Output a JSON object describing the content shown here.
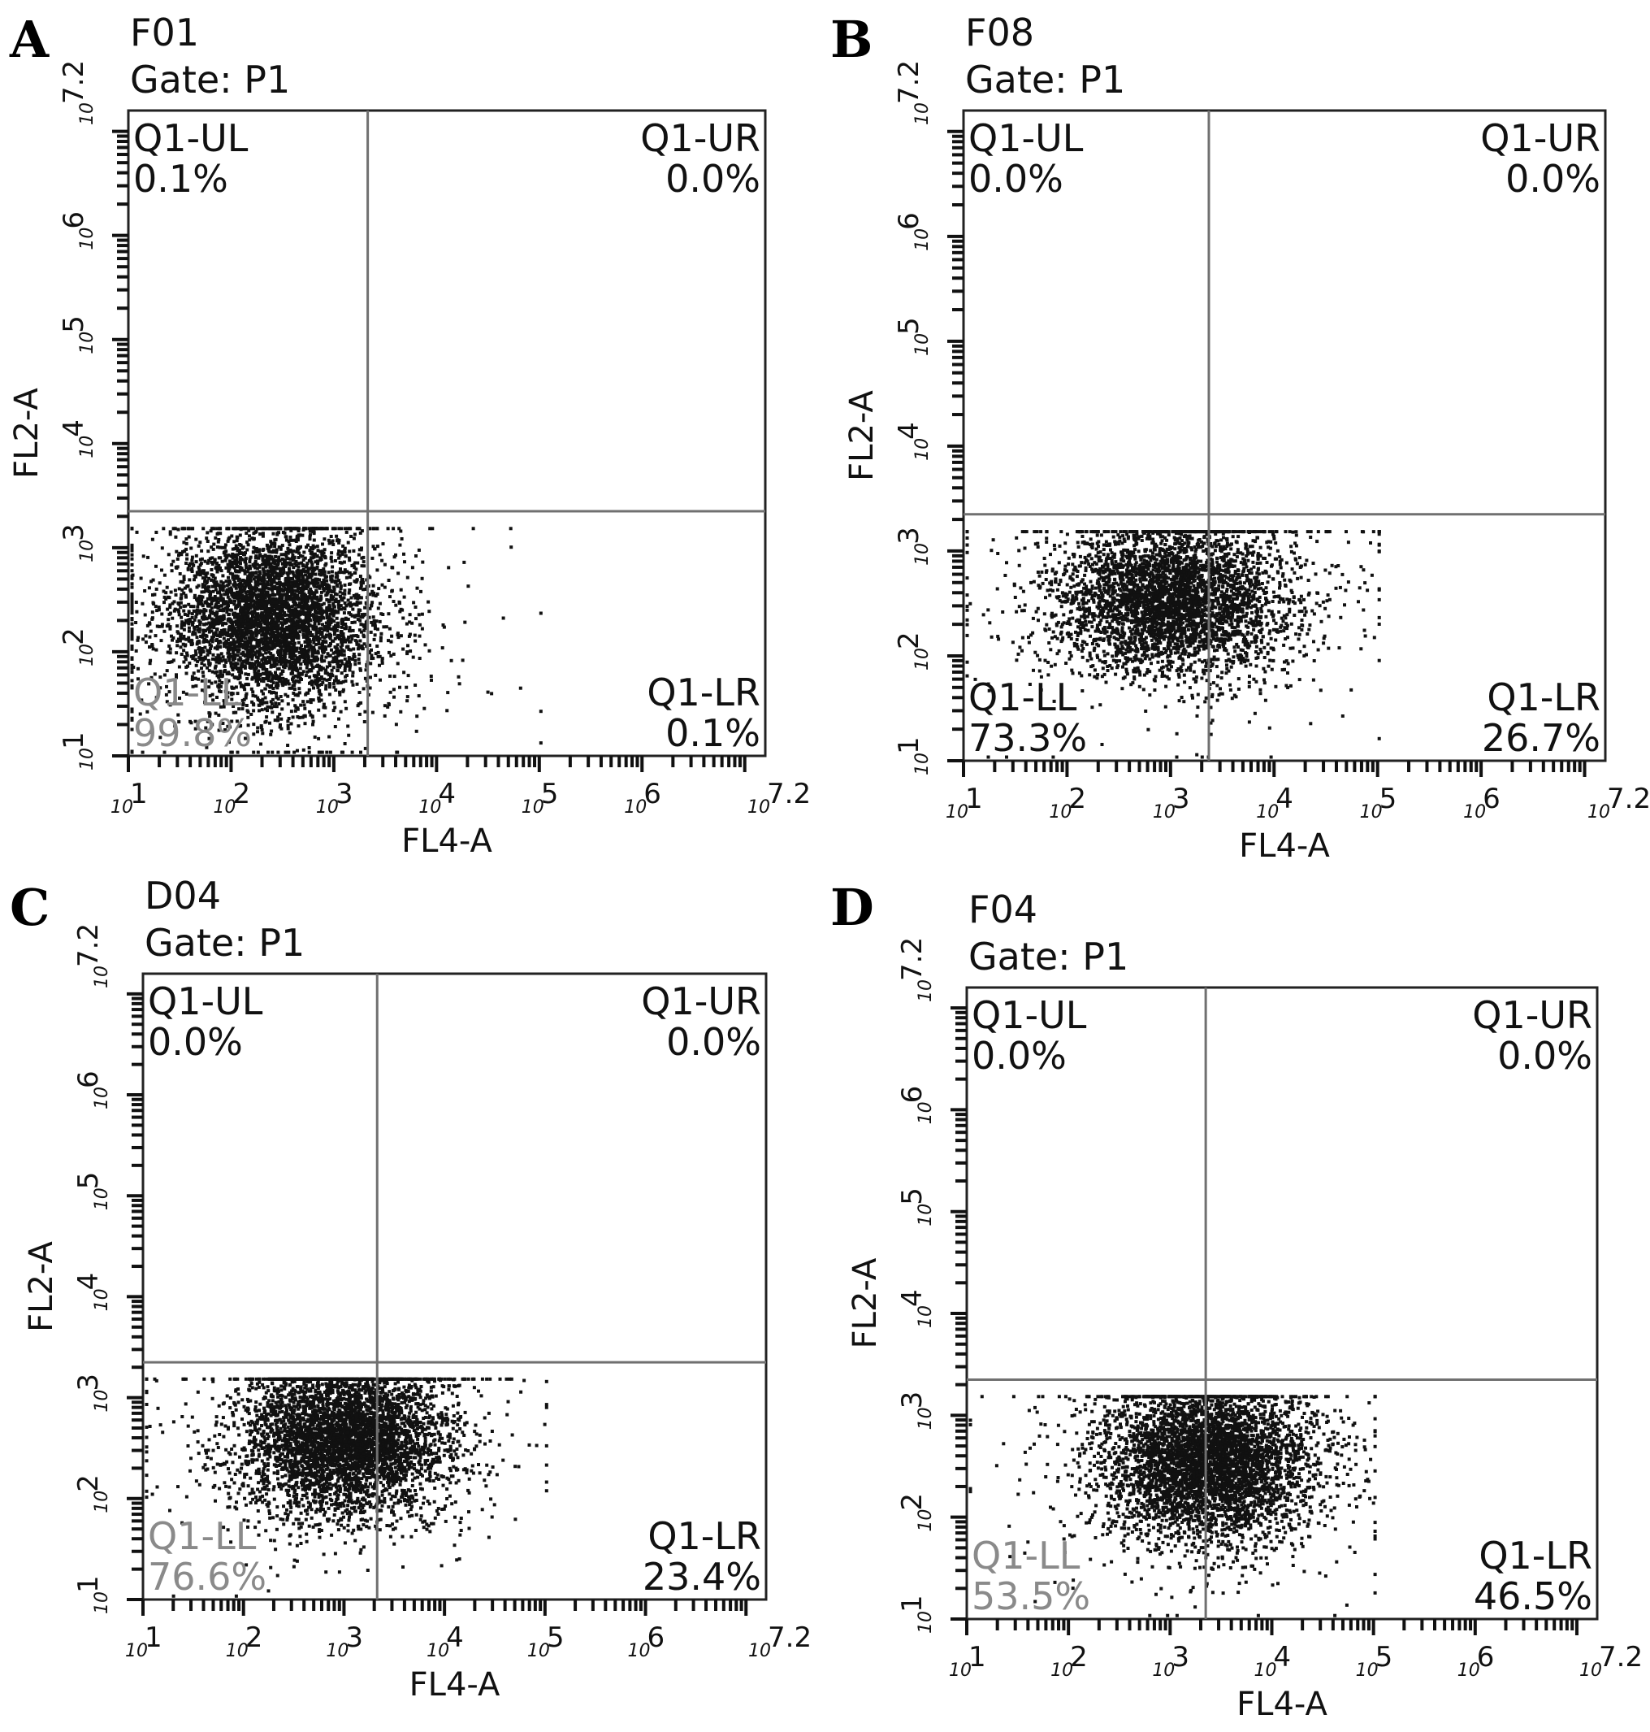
{
  "chart_data": [
    {
      "panel": "A",
      "type": "scatter",
      "title": "F01",
      "subtitle": "Gate: P1",
      "xlabel": "FL4-A",
      "ylabel": "FL2-A",
      "scale": "log",
      "xlim": [
        1,
        7.2
      ],
      "ylim": [
        1,
        7.2
      ],
      "x_ticks": [
        "1",
        "2",
        "3",
        "4",
        "5",
        "6",
        "7.2"
      ],
      "y_ticks": [
        "1",
        "2",
        "3",
        "4",
        "5",
        "6",
        "7.2"
      ],
      "tick_prefix": "10",
      "gate_x": 3.33,
      "gate_y": 3.35,
      "quadrants": [
        {
          "name": "Q1-UL",
          "value": "0.1%",
          "pos": "tl"
        },
        {
          "name": "Q1-UR",
          "value": "0.0%",
          "pos": "tr"
        },
        {
          "name": "Q1-LL",
          "value": "99.8%",
          "pos": "bl",
          "faded": true
        },
        {
          "name": "Q1-LR",
          "value": "0.1%",
          "pos": "br"
        }
      ],
      "population": {
        "cx": 2.4,
        "cy": 2.35,
        "sx": 0.5,
        "sy": 0.42,
        "n": 4500
      }
    },
    {
      "panel": "B",
      "type": "scatter",
      "title": "F08",
      "subtitle": "Gate: P1",
      "xlabel": "FL4-A",
      "ylabel": "FL2-A",
      "scale": "log",
      "xlim": [
        1,
        7.2
      ],
      "ylim": [
        1,
        7.2
      ],
      "x_ticks": [
        "1",
        "2",
        "3",
        "4",
        "5",
        "6",
        "7.2"
      ],
      "y_ticks": [
        "1",
        "2",
        "3",
        "4",
        "5",
        "6",
        "7.2"
      ],
      "tick_prefix": "10",
      "gate_x": 3.37,
      "gate_y": 3.35,
      "quadrants": [
        {
          "name": "Q1-UL",
          "value": "0.0%",
          "pos": "tl"
        },
        {
          "name": "Q1-UR",
          "value": "0.0%",
          "pos": "tr"
        },
        {
          "name": "Q1-LL",
          "value": "73.3%",
          "pos": "bl"
        },
        {
          "name": "Q1-LR",
          "value": "26.7%",
          "pos": "br"
        }
      ],
      "population": {
        "cx": 3.0,
        "cy": 2.55,
        "sx": 0.55,
        "sy": 0.35,
        "n": 4000
      }
    },
    {
      "panel": "C",
      "type": "scatter",
      "title": "D04",
      "subtitle": "Gate: P1",
      "xlabel": "FL4-A",
      "ylabel": "FL2-A",
      "scale": "log",
      "xlim": [
        1,
        7.2
      ],
      "ylim": [
        1,
        7.2
      ],
      "x_ticks": [
        "1",
        "2",
        "3",
        "4",
        "5",
        "6",
        "7.2"
      ],
      "y_ticks": [
        "1",
        "2",
        "3",
        "4",
        "5",
        "6",
        "7.2"
      ],
      "tick_prefix": "10",
      "gate_x": 3.33,
      "gate_y": 3.35,
      "quadrants": [
        {
          "name": "Q1-UL",
          "value": "0.0%",
          "pos": "tl"
        },
        {
          "name": "Q1-UR",
          "value": "0.0%",
          "pos": "tr"
        },
        {
          "name": "Q1-LL",
          "value": "76.6%",
          "pos": "bl",
          "faded": true
        },
        {
          "name": "Q1-LR",
          "value": "23.4%",
          "pos": "br"
        }
      ],
      "population": {
        "cx": 3.0,
        "cy": 2.6,
        "sx": 0.5,
        "sy": 0.38,
        "n": 4500
      }
    },
    {
      "panel": "D",
      "type": "scatter",
      "title": "F04",
      "subtitle": "Gate: P1",
      "xlabel": "FL4-A",
      "ylabel": "FL2-A",
      "scale": "log",
      "xlim": [
        1,
        7.2
      ],
      "ylim": [
        1,
        7.2
      ],
      "x_ticks": [
        "1",
        "2",
        "3",
        "4",
        "5",
        "6",
        "7.2"
      ],
      "y_ticks": [
        "1",
        "2",
        "3",
        "4",
        "5",
        "6",
        "7.2"
      ],
      "tick_prefix": "10",
      "gate_x": 3.35,
      "gate_y": 3.35,
      "quadrants": [
        {
          "name": "Q1-UL",
          "value": "0.0%",
          "pos": "tl"
        },
        {
          "name": "Q1-UR",
          "value": "0.0%",
          "pos": "tr"
        },
        {
          "name": "Q1-LL",
          "value": "53.5%",
          "pos": "bl",
          "faded": true
        },
        {
          "name": "Q1-LR",
          "value": "46.5%",
          "pos": "br"
        }
      ],
      "population": {
        "cx": 3.35,
        "cy": 2.55,
        "sx": 0.5,
        "sy": 0.38,
        "n": 4500
      }
    }
  ],
  "colors": {
    "dots": "#111111",
    "frame": "#222222",
    "gate": "#707070",
    "faded_label": "#8a8a8a"
  }
}
